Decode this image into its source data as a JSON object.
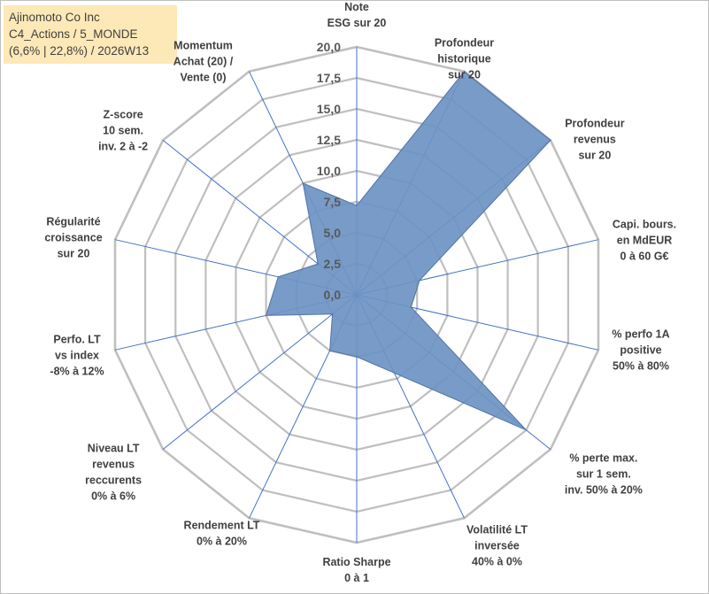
{
  "header": {
    "line1": "Ajinomoto Co Inc",
    "line2": "C4_Actions / 5_MONDE",
    "line3": "(6,6% | 22,8%) / 2026W13"
  },
  "chart_data": {
    "type": "radar",
    "rmin": 0,
    "rmax": 20,
    "tick_step": 2.5,
    "tick_labels": [
      "0,0",
      "2,5",
      "5,0",
      "7,5",
      "10,0",
      "12,5",
      "15,0",
      "17,5",
      "20,0"
    ],
    "axes": [
      [
        "Note",
        "ESG sur 20"
      ],
      [
        "Profondeur",
        "historique",
        "sur 20"
      ],
      [
        "Profondeur",
        "revenus",
        "sur 20"
      ],
      [
        "Capi. bours.",
        "en MdEUR",
        "0 à 60 G€"
      ],
      [
        "% perfo 1A",
        "positive",
        "50% à 80%"
      ],
      [
        "% perte max.",
        "sur 1 sem.",
        "inv. 50% à 20%"
      ],
      [
        "Volatilité LT",
        "inversée",
        "40% à 0%"
      ],
      [
        "Ratio Sharpe",
        "0 à 1"
      ],
      [
        "Rendement LT",
        "0% à 20%"
      ],
      [
        "Niveau LT",
        "revenus",
        "reccurents",
        "0% à 6%"
      ],
      [
        "Perfo. LT",
        "vs index",
        "-8% à 12%"
      ],
      [
        "Régularité",
        "croissance",
        "sur 20"
      ],
      [
        "Z-score",
        "10 sem.",
        "inv. 2 à -2"
      ],
      [
        "Momentum",
        "Achat (20) /",
        "Vente (0)"
      ]
    ],
    "values": [
      7.2,
      20.0,
      20.0,
      5.2,
      4.5,
      17.5,
      7.0,
      5.0,
      5.0,
      2.5,
      7.5,
      6.5,
      4.0,
      10.0
    ],
    "colors": {
      "grid": "#bfbfbf",
      "spoke": "#4472c4",
      "fill": "#6e93c3",
      "stroke": "#4e74a8"
    }
  }
}
